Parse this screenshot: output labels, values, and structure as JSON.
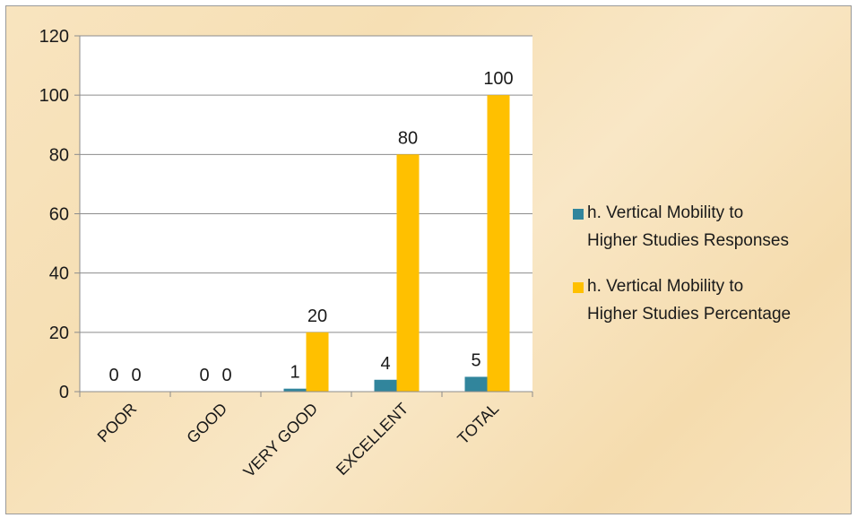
{
  "chart_data": {
    "type": "bar",
    "title": "",
    "xlabel": "",
    "ylabel": "",
    "categories": [
      "POOR",
      "GOOD",
      "VERY GOOD",
      "EXCELLENT",
      "TOTAL"
    ],
    "series": [
      {
        "name": "h. Vertical Mobility to Higher Studies Responses",
        "name_lines": [
          "h. Vertical Mobility to",
          "Higher Studies Responses"
        ],
        "values": [
          0,
          0,
          1,
          4,
          5
        ],
        "color": "#31859c"
      },
      {
        "name": "h. Vertical Mobility to Higher Studies Percentage",
        "name_lines": [
          "h. Vertical Mobility to",
          "Higher Studies Percentage"
        ],
        "values": [
          0,
          0,
          20,
          80,
          100
        ],
        "color": "#ffc000"
      }
    ],
    "ylim": [
      0,
      120
    ],
    "yticks": [
      0,
      20,
      40,
      60,
      80,
      100,
      120
    ],
    "grid": true,
    "legend": "right",
    "data_labels": true,
    "plot_background": "#ffffff",
    "gridline_color": "#8c8c8c"
  }
}
